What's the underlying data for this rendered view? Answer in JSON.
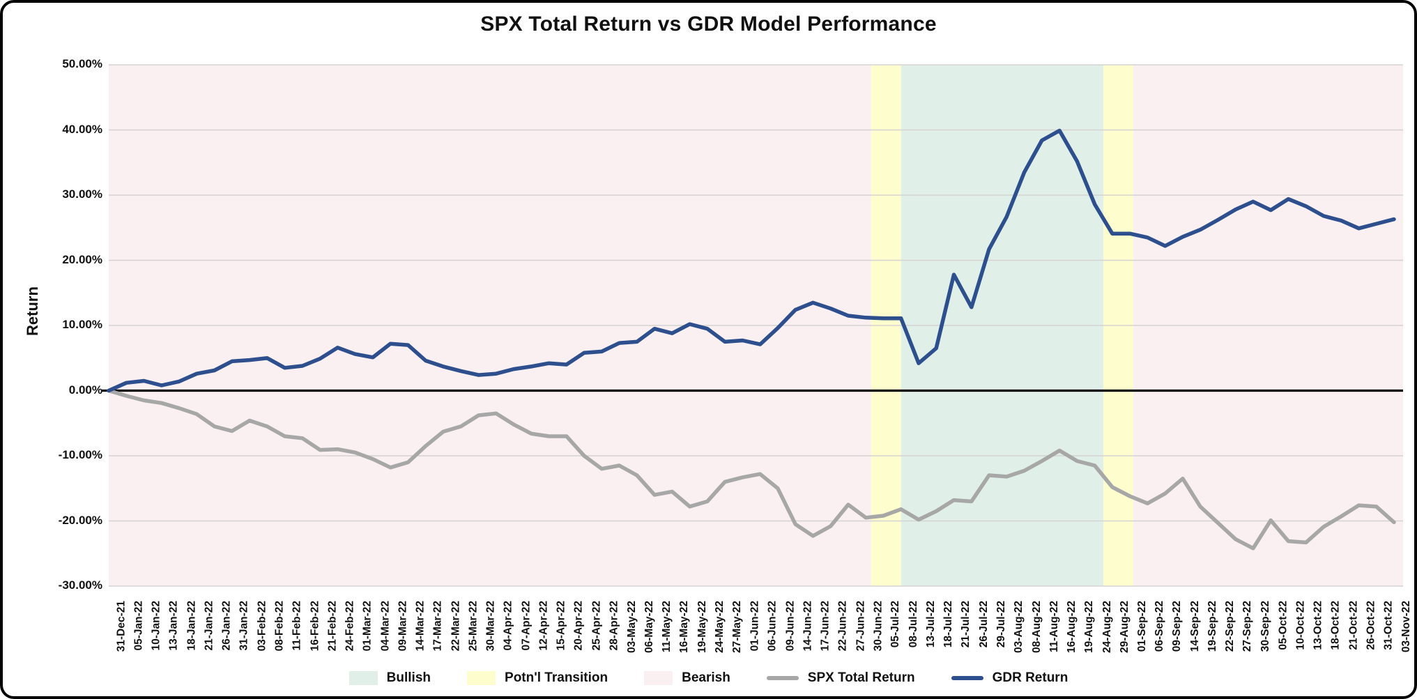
{
  "title": "SPX Total Return vs GDR Model Performance",
  "y_axis": {
    "label": "Return",
    "ticks": [
      "50.00%",
      "40.00%",
      "30.00%",
      "20.00%",
      "10.00%",
      "0.00%",
      "-10.00%",
      "-20.00%",
      "-30.00%"
    ],
    "max": 50,
    "min": -30,
    "step": 10
  },
  "colors": {
    "bullish_bg": "#e0f0e8",
    "transition_bg": "#fdfdcd",
    "bearish_bg": "#faf0f1",
    "gridline": "#d5d3d2",
    "zero_line": "#000000",
    "spx_line": "#a7a7a7",
    "gdr_line": "#2e4f8d",
    "text": "#111111"
  },
  "chart_data": {
    "type": "line",
    "title": "SPX Total Return vs GDR Model Performance",
    "xlabel": "",
    "ylabel": "Return",
    "ylim": [
      -30,
      50
    ],
    "grid": "horizontal",
    "legend_position": "bottom",
    "categories": [
      "31-Dec-21",
      "05-Jan-22",
      "10-Jan-22",
      "13-Jan-22",
      "18-Jan-22",
      "21-Jan-22",
      "26-Jan-22",
      "31-Jan-22",
      "03-Feb-22",
      "08-Feb-22",
      "11-Feb-22",
      "16-Feb-22",
      "21-Feb-22",
      "24-Feb-22",
      "01-Mar-22",
      "04-Mar-22",
      "09-Mar-22",
      "14-Mar-22",
      "17-Mar-22",
      "22-Mar-22",
      "25-Mar-22",
      "30-Mar-22",
      "04-Apr-22",
      "07-Apr-22",
      "12-Apr-22",
      "15-Apr-22",
      "20-Apr-22",
      "25-Apr-22",
      "28-Apr-22",
      "03-May-22",
      "06-May-22",
      "11-May-22",
      "16-May-22",
      "19-May-22",
      "24-May-22",
      "27-May-22",
      "01-Jun-22",
      "06-Jun-22",
      "09-Jun-22",
      "14-Jun-22",
      "17-Jun-22",
      "22-Jun-22",
      "27-Jun-22",
      "30-Jun-22",
      "05-Jul-22",
      "08-Jul-22",
      "13-Jul-22",
      "18-Jul-22",
      "21-Jul-22",
      "26-Jul-22",
      "29-Jul-22",
      "03-Aug-22",
      "08-Aug-22",
      "11-Aug-22",
      "16-Aug-22",
      "19-Aug-22",
      "24-Aug-22",
      "29-Aug-22",
      "01-Sep-22",
      "06-Sep-22",
      "09-Sep-22",
      "14-Sep-22",
      "19-Sep-22",
      "22-Sep-22",
      "27-Sep-22",
      "30-Sep-22",
      "05-Oct-22",
      "10-Oct-22",
      "13-Oct-22",
      "18-Oct-22",
      "21-Oct-22",
      "26-Oct-22",
      "31-Oct-22",
      "03-Nov-22"
    ],
    "series": [
      {
        "name": "SPX Total Return",
        "color": "#a7a7a7",
        "values": [
          0.0,
          -0.8,
          -1.5,
          -1.9,
          -2.7,
          -3.6,
          -5.5,
          -6.2,
          -4.6,
          -5.5,
          -7.0,
          -7.3,
          -9.1,
          -9.0,
          -9.5,
          -10.5,
          -11.8,
          -11.0,
          -8.5,
          -6.3,
          -5.5,
          -3.8,
          -3.5,
          -5.2,
          -6.6,
          -7.0,
          -7.0,
          -10.0,
          -12.0,
          -11.5,
          -13.0,
          -16.0,
          -15.5,
          -17.8,
          -17.0,
          -14.0,
          -13.3,
          -12.8,
          -15.0,
          -20.5,
          -22.3,
          -20.8,
          -17.5,
          -19.5,
          -19.2,
          -18.2,
          -19.8,
          -18.5,
          -16.8,
          -17.0,
          -13.0,
          -13.2,
          -12.3,
          -10.8,
          -9.2,
          -10.8,
          -11.5,
          -14.8,
          -16.2,
          -17.3,
          -15.8,
          -13.5,
          -17.8,
          -20.3,
          -22.8,
          -24.2,
          -19.9,
          -23.1,
          -23.3,
          -20.9,
          -19.3,
          -17.6,
          -17.8,
          -20.2
        ]
      },
      {
        "name": "GDR Return",
        "color": "#2e4f8d",
        "values": [
          0.0,
          1.2,
          1.5,
          0.8,
          1.4,
          2.6,
          3.1,
          4.5,
          4.7,
          5.0,
          3.5,
          3.8,
          4.9,
          6.6,
          5.6,
          5.1,
          7.2,
          7.0,
          4.6,
          3.7,
          3.0,
          2.4,
          2.6,
          3.3,
          3.7,
          4.2,
          4.0,
          5.8,
          6.0,
          7.3,
          7.5,
          9.5,
          8.8,
          10.2,
          9.5,
          7.5,
          7.7,
          7.1,
          9.6,
          12.4,
          13.5,
          12.6,
          11.5,
          11.2,
          11.1,
          11.1,
          4.2,
          6.5,
          17.8,
          12.8,
          21.7,
          26.7,
          33.5,
          38.4,
          39.9,
          35.2,
          28.6,
          24.1,
          24.1,
          23.5,
          22.2,
          23.6,
          24.7,
          26.2,
          27.8,
          29.0,
          27.7,
          29.4,
          28.3,
          26.8,
          26.1,
          24.9,
          25.6,
          26.3
        ]
      }
    ],
    "regions": [
      {
        "label": "Bearish",
        "color": "#faf0f1",
        "start": "31-Dec-21",
        "end": "30-Jun-22",
        "start_index": 0,
        "end_index": 43.3
      },
      {
        "label": "Potn'l Transition",
        "color": "#fdfdcd",
        "start": "30-Jun-22",
        "end": "08-Jul-22",
        "start_index": 43.3,
        "end_index": 45.0
      },
      {
        "label": "Bullish",
        "color": "#e0f0e8",
        "start": "08-Jul-22",
        "end": "24-Aug-22",
        "start_index": 45.0,
        "end_index": 56.5
      },
      {
        "label": "Potn'l Transition",
        "color": "#fdfdcd",
        "start": "24-Aug-22",
        "end": "01-Sep-22",
        "start_index": 56.5,
        "end_index": 58.2
      },
      {
        "label": "Bearish",
        "color": "#faf0f1",
        "start": "01-Sep-22",
        "end": "03-Nov-22",
        "start_index": 58.2,
        "end_index": 73
      }
    ]
  },
  "legend": {
    "items": [
      {
        "kind": "patch",
        "label": "Bullish",
        "color": "#e0f0e8"
      },
      {
        "kind": "patch",
        "label": "Potn'l Transition",
        "color": "#fdfdcd"
      },
      {
        "kind": "patch",
        "label": "Bearish",
        "color": "#faf0f1"
      },
      {
        "kind": "line",
        "label": "SPX Total Return",
        "color": "#a7a7a7"
      },
      {
        "kind": "line",
        "label": "GDR Return",
        "color": "#2e4f8d"
      }
    ]
  }
}
